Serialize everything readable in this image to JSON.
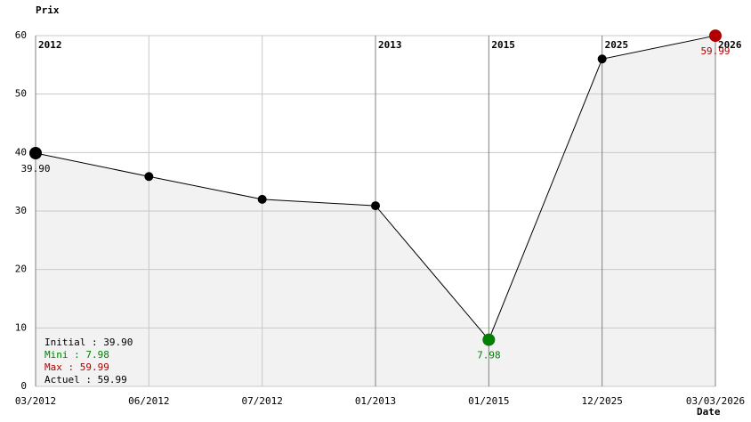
{
  "chart_data": {
    "type": "line",
    "y_label": "Prix",
    "x_label": "Date",
    "categories": [
      "03/2012",
      "06/2012",
      "07/2012",
      "01/2013",
      "01/2015",
      "12/2025",
      "03/03/2026"
    ],
    "year_labels": [
      "2012",
      null,
      null,
      "2013",
      "2015",
      "2025",
      "2026"
    ],
    "values": [
      39.9,
      35.9,
      32,
      30.9,
      7.98,
      56,
      59.99
    ],
    "value_labels": [
      "39.90",
      null,
      null,
      null,
      "7.98",
      null,
      "59.99"
    ],
    "point_colors": [
      "#000000",
      "#000000",
      "#000000",
      "#000000",
      "#008000",
      "#000000",
      "#b00000"
    ],
    "line_color": "#000000",
    "area_color": "#f2f2f2",
    "ylim": [
      0,
      60
    ],
    "yticks": [
      0,
      10,
      20,
      30,
      40,
      50,
      60
    ],
    "grid": true,
    "summary": [
      {
        "text": "Initial : 39.90",
        "color": "#000000"
      },
      {
        "text": "Mini : 7.98",
        "color": "#008000"
      },
      {
        "text": "Max : 59.99",
        "color": "#b00000"
      },
      {
        "text": "Actuel : 59.99",
        "color": "#000000"
      }
    ]
  }
}
